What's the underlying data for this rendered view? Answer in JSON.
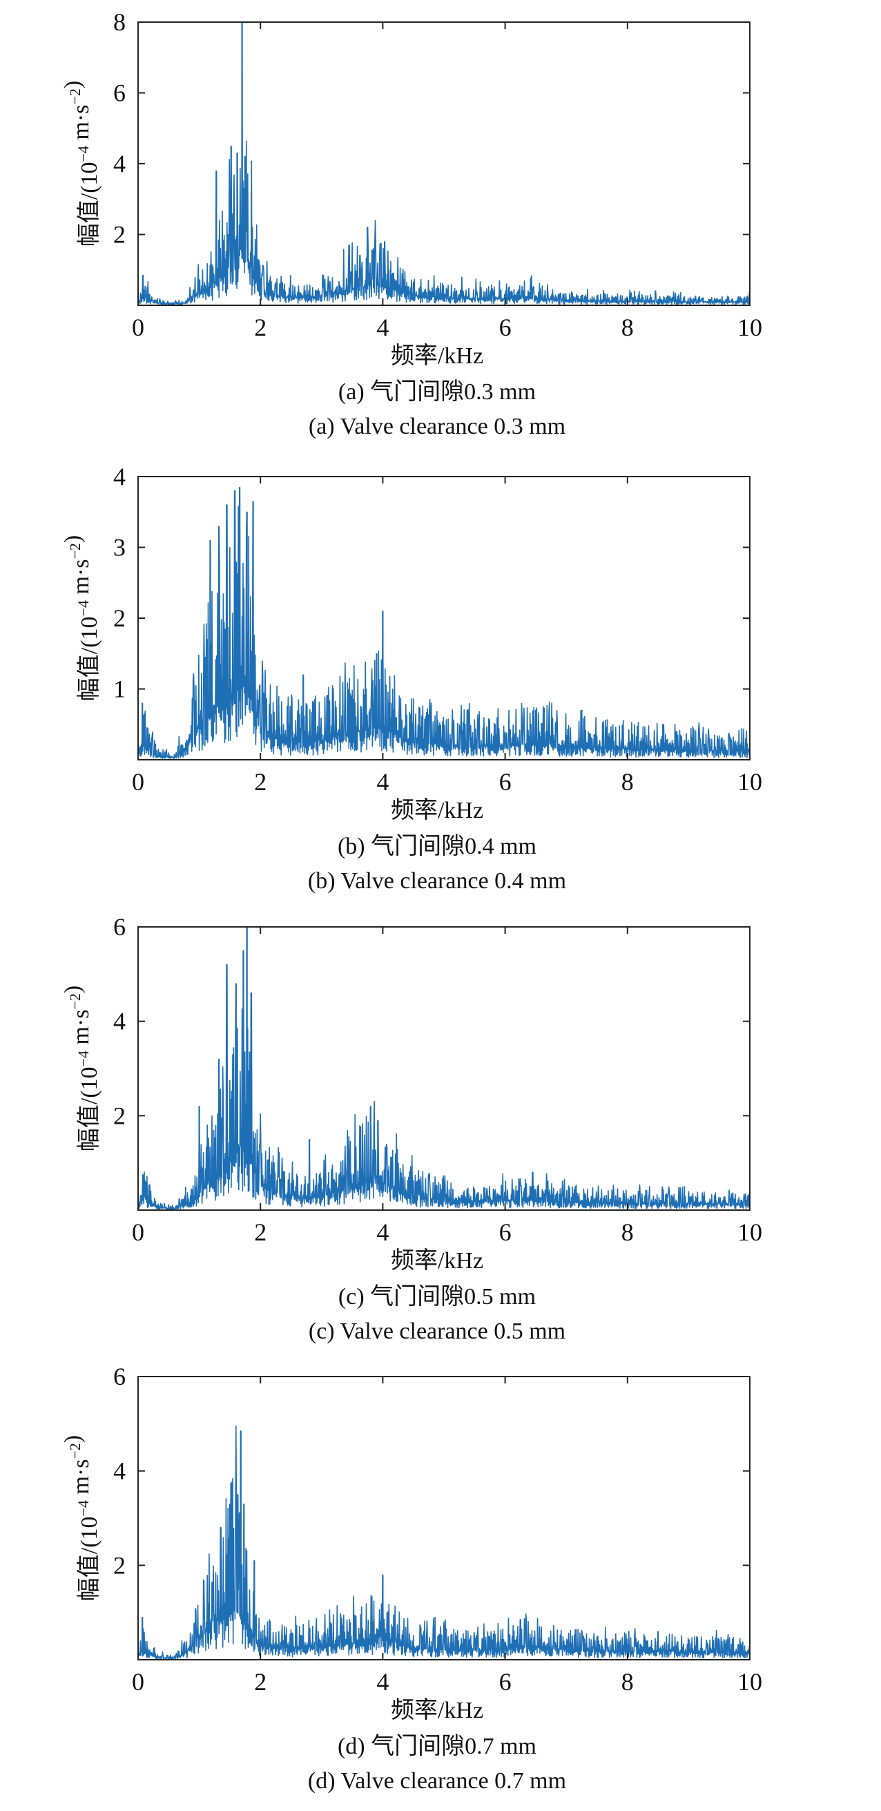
{
  "colors": {
    "series": "#1f6fb5",
    "axis": "#222222",
    "background": "#ffffff"
  },
  "chart_data": [
    {
      "type": "line",
      "xlabel": "频率/kHz",
      "ylabel": "幅值/(10−4 m·s−2)",
      "ylabel_parts": {
        "prefix": "幅值/(10",
        "exp1": "−4",
        "mid": " m·s",
        "exp2": "−2",
        "suffix": ")"
      },
      "xlim": [
        0,
        10
      ],
      "ylim": [
        0,
        8
      ],
      "xticks": [
        0,
        2,
        4,
        6,
        8,
        10
      ],
      "yticks": [
        2,
        4,
        6,
        8
      ],
      "caption_zh": "(a) 气门间隙0.3 mm",
      "caption_en": "(a) Valve clearance 0.3 mm",
      "envelope": [
        [
          0,
          0.15
        ],
        [
          0.1,
          0.4
        ],
        [
          0.3,
          0.1
        ],
        [
          0.6,
          0.05
        ],
        [
          0.8,
          0.12
        ],
        [
          1.0,
          0.5
        ],
        [
          1.2,
          0.9
        ],
        [
          1.4,
          1.4
        ],
        [
          1.6,
          2.2
        ],
        [
          1.7,
          2.6
        ],
        [
          1.8,
          2.2
        ],
        [
          1.9,
          1.2
        ],
        [
          2.0,
          0.6
        ],
        [
          2.2,
          0.45
        ],
        [
          2.5,
          0.35
        ],
        [
          3.0,
          0.4
        ],
        [
          3.3,
          0.6
        ],
        [
          3.6,
          0.8
        ],
        [
          3.9,
          1.0
        ],
        [
          4.0,
          1.0
        ],
        [
          4.2,
          0.7
        ],
        [
          4.5,
          0.45
        ],
        [
          5.0,
          0.35
        ],
        [
          5.5,
          0.3
        ],
        [
          6.0,
          0.3
        ],
        [
          6.4,
          0.35
        ],
        [
          6.6,
          0.3
        ],
        [
          7.0,
          0.2
        ],
        [
          8.0,
          0.18
        ],
        [
          9.0,
          0.15
        ],
        [
          10.0,
          0.15
        ]
      ],
      "peaks": [
        [
          0.08,
          0.85
        ],
        [
          1.28,
          3.8
        ],
        [
          1.52,
          4.5
        ],
        [
          1.62,
          4.3
        ],
        [
          1.7,
          8.0
        ],
        [
          1.75,
          4.2
        ],
        [
          3.45,
          1.7
        ],
        [
          3.75,
          2.2
        ],
        [
          3.85,
          1.6
        ],
        [
          3.97,
          1.75
        ],
        [
          4.03,
          1.8
        ],
        [
          6.42,
          0.75
        ]
      ],
      "noise": 0.35,
      "seed": 11
    },
    {
      "type": "line",
      "xlabel": "频率/kHz",
      "ylabel": "幅值/(10−4 m·s−2)",
      "ylabel_parts": {
        "prefix": "幅值/(10",
        "exp1": "−4",
        "mid": " m·s",
        "exp2": "−2",
        "suffix": ")"
      },
      "xlim": [
        0,
        10
      ],
      "ylim": [
        0,
        4
      ],
      "xticks": [
        0,
        2,
        4,
        6,
        8,
        10
      ],
      "yticks": [
        1,
        2,
        3,
        4
      ],
      "caption_zh": "(b) 气门间隙0.4 mm",
      "caption_en": "(b) Valve clearance 0.4 mm",
      "envelope": [
        [
          0,
          0.15
        ],
        [
          0.1,
          0.4
        ],
        [
          0.3,
          0.08
        ],
        [
          0.6,
          0.05
        ],
        [
          0.8,
          0.3
        ],
        [
          1.0,
          0.8
        ],
        [
          1.2,
          1.2
        ],
        [
          1.5,
          1.5
        ],
        [
          1.7,
          1.7
        ],
        [
          1.9,
          1.3
        ],
        [
          2.0,
          0.7
        ],
        [
          2.2,
          0.5
        ],
        [
          2.5,
          0.4
        ],
        [
          3.0,
          0.45
        ],
        [
          3.3,
          0.55
        ],
        [
          3.7,
          0.65
        ],
        [
          4.0,
          0.75
        ],
        [
          4.3,
          0.5
        ],
        [
          4.5,
          0.4
        ],
        [
          5.0,
          0.35
        ],
        [
          5.5,
          0.32
        ],
        [
          6.0,
          0.3
        ],
        [
          6.5,
          0.38
        ],
        [
          7.0,
          0.3
        ],
        [
          7.5,
          0.27
        ],
        [
          8.0,
          0.25
        ],
        [
          9.0,
          0.22
        ],
        [
          10.0,
          0.2
        ]
      ],
      "peaks": [
        [
          0.07,
          0.8
        ],
        [
          1.18,
          3.1
        ],
        [
          1.32,
          3.3
        ],
        [
          1.45,
          3.6
        ],
        [
          1.58,
          3.8
        ],
        [
          1.66,
          3.85
        ],
        [
          1.78,
          3.5
        ],
        [
          1.88,
          3.65
        ],
        [
          2.7,
          1.2
        ],
        [
          3.9,
          1.5
        ],
        [
          4.0,
          2.1
        ],
        [
          6.5,
          0.7
        ]
      ],
      "noise": 0.55,
      "seed": 23
    },
    {
      "type": "line",
      "xlabel": "频率/kHz",
      "ylabel": "幅值/(10−4 m·s−2)",
      "ylabel_parts": {
        "prefix": "幅值/(10",
        "exp1": "−4",
        "mid": " m·s",
        "exp2": "−2",
        "suffix": ")"
      },
      "xlim": [
        0,
        10
      ],
      "ylim": [
        0,
        6
      ],
      "xticks": [
        0,
        2,
        4,
        6,
        8,
        10
      ],
      "yticks": [
        2,
        4,
        6
      ],
      "caption_zh": "(c) 气门间隙0.5 mm",
      "caption_en": "(c) Valve clearance 0.5 mm",
      "envelope": [
        [
          0,
          0.15
        ],
        [
          0.1,
          0.45
        ],
        [
          0.3,
          0.08
        ],
        [
          0.6,
          0.05
        ],
        [
          0.9,
          0.3
        ],
        [
          1.1,
          0.8
        ],
        [
          1.4,
          1.4
        ],
        [
          1.6,
          2.0
        ],
        [
          1.75,
          2.6
        ],
        [
          1.9,
          1.6
        ],
        [
          2.0,
          0.9
        ],
        [
          2.3,
          0.55
        ],
        [
          2.6,
          0.4
        ],
        [
          3.0,
          0.45
        ],
        [
          3.4,
          0.7
        ],
        [
          3.7,
          1.0
        ],
        [
          3.85,
          1.2
        ],
        [
          4.1,
          0.8
        ],
        [
          4.5,
          0.45
        ],
        [
          5.0,
          0.35
        ],
        [
          5.5,
          0.3
        ],
        [
          6.0,
          0.32
        ],
        [
          6.5,
          0.35
        ],
        [
          7.0,
          0.28
        ],
        [
          8.0,
          0.22
        ],
        [
          9.0,
          0.2
        ],
        [
          10.0,
          0.2
        ]
      ],
      "peaks": [
        [
          0.08,
          0.75
        ],
        [
          1.0,
          2.2
        ],
        [
          1.32,
          3.2
        ],
        [
          1.45,
          5.2
        ],
        [
          1.6,
          4.8
        ],
        [
          1.72,
          5.5
        ],
        [
          1.78,
          6.0
        ],
        [
          1.85,
          4.6
        ],
        [
          2.8,
          1.5
        ],
        [
          3.8,
          2.2
        ],
        [
          3.92,
          1.9
        ],
        [
          6.45,
          0.8
        ]
      ],
      "noise": 0.45,
      "seed": 37
    },
    {
      "type": "line",
      "xlabel": "频率/kHz",
      "ylabel": "幅值/(10−4 m·s−2)",
      "ylabel_parts": {
        "prefix": "幅值/(10",
        "exp1": "−4",
        "mid": " m·s",
        "exp2": "−2",
        "suffix": ")"
      },
      "xlim": [
        0,
        10
      ],
      "ylim": [
        0,
        6
      ],
      "xticks": [
        0,
        2,
        4,
        6,
        8,
        10
      ],
      "yticks": [
        2,
        4,
        6
      ],
      "caption_zh": "(d) 气门间隙0.7 mm",
      "caption_en": "(d) Valve clearance 0.7 mm",
      "envelope": [
        [
          0,
          0.15
        ],
        [
          0.1,
          0.4
        ],
        [
          0.3,
          0.08
        ],
        [
          0.6,
          0.05
        ],
        [
          0.8,
          0.25
        ],
        [
          1.0,
          0.8
        ],
        [
          1.2,
          1.3
        ],
        [
          1.4,
          1.7
        ],
        [
          1.6,
          2.1
        ],
        [
          1.7,
          1.6
        ],
        [
          1.9,
          0.7
        ],
        [
          2.1,
          0.45
        ],
        [
          2.5,
          0.4
        ],
        [
          3.0,
          0.45
        ],
        [
          3.5,
          0.55
        ],
        [
          3.9,
          0.75
        ],
        [
          4.0,
          0.8
        ],
        [
          4.3,
          0.5
        ],
        [
          4.5,
          0.4
        ],
        [
          5.0,
          0.35
        ],
        [
          5.5,
          0.32
        ],
        [
          6.0,
          0.35
        ],
        [
          6.3,
          0.45
        ],
        [
          6.7,
          0.38
        ],
        [
          7.0,
          0.35
        ],
        [
          7.5,
          0.3
        ],
        [
          8.0,
          0.27
        ],
        [
          8.5,
          0.32
        ],
        [
          9.0,
          0.25
        ],
        [
          10.0,
          0.25
        ]
      ],
      "peaks": [
        [
          0.07,
          0.9
        ],
        [
          1.35,
          2.8
        ],
        [
          1.5,
          3.3
        ],
        [
          1.63,
          3.5
        ],
        [
          1.68,
          4.85
        ],
        [
          1.73,
          3.3
        ],
        [
          1.9,
          2.1
        ],
        [
          4.0,
          1.8
        ],
        [
          6.25,
          0.85
        ],
        [
          8.5,
          0.6
        ]
      ],
      "noise": 0.45,
      "seed": 53
    }
  ]
}
